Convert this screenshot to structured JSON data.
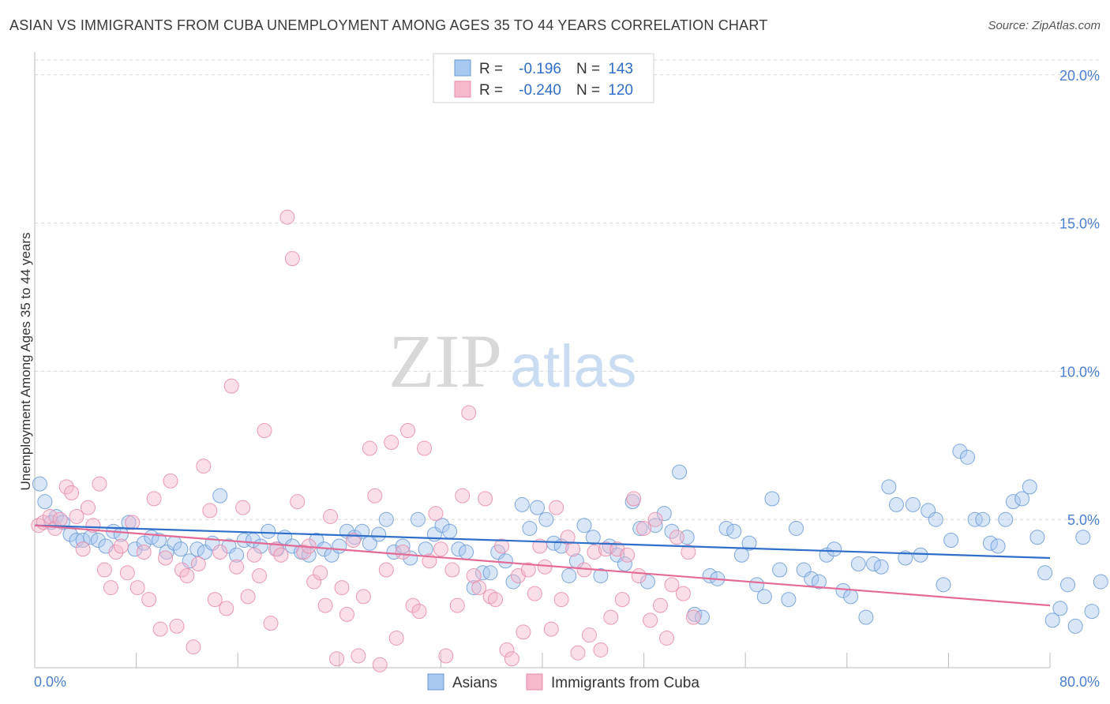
{
  "title": "ASIAN VS IMMIGRANTS FROM CUBA UNEMPLOYMENT AMONG AGES 35 TO 44 YEARS CORRELATION CHART",
  "source": "Source: ZipAtlas.com",
  "watermark": {
    "zip": "ZIP",
    "atlas": "atlas"
  },
  "colors": {
    "asian_fill": "#a9c8ef",
    "asian_stroke": "#6a9ad8",
    "asian_line": "#2f6fc9",
    "cuba_fill": "#f5b8cb",
    "cuba_stroke": "#e88aa8",
    "cuba_line": "#e36b96",
    "tick_text": "#4a7fd0",
    "grid": "#d6d6d6"
  },
  "legend": {
    "r_label": "R =",
    "n_label": "N =",
    "asian_r": "-0.196",
    "asian_n": "143",
    "cuba_r": "-0.240",
    "cuba_n": "120"
  },
  "bottom_legend": {
    "asian": "Asians",
    "cuba": "Immigrants from Cuba"
  },
  "chart_data": {
    "type": "scatter",
    "title": "ASIAN VS IMMIGRANTS FROM CUBA UNEMPLOYMENT AMONG AGES 35 TO 44 YEARS CORRELATION CHART",
    "xlabel": "",
    "ylabel": "Unemployment Among Ages 35 to 44 years",
    "xlim": [
      0,
      80
    ],
    "ylim": [
      0,
      20.5
    ],
    "x_tick_labels": [
      "0.0%",
      "80.0%"
    ],
    "y_ticks": [
      5,
      10,
      15,
      20
    ],
    "y_tick_labels": [
      "5.0%",
      "10.0%",
      "15.0%",
      "20.0%"
    ],
    "grid": true,
    "legend_position": "top-center",
    "series": [
      {
        "name": "Asians",
        "r": -0.196,
        "n": 143,
        "trend": {
          "x": [
            0,
            80
          ],
          "y": [
            4.8,
            3.7
          ]
        },
        "points": [
          [
            0.4,
            6.2
          ],
          [
            0.8,
            5.6
          ],
          [
            1.3,
            4.9
          ],
          [
            1.7,
            5.1
          ],
          [
            2.2,
            4.9
          ],
          [
            2.8,
            4.5
          ],
          [
            3.3,
            4.3
          ],
          [
            3.8,
            4.3
          ],
          [
            4.4,
            4.4
          ],
          [
            5.0,
            4.3
          ],
          [
            5.6,
            4.1
          ],
          [
            6.2,
            4.6
          ],
          [
            6.8,
            4.5
          ],
          [
            7.4,
            4.9
          ],
          [
            7.9,
            4.0
          ],
          [
            8.6,
            4.2
          ],
          [
            9.2,
            4.4
          ],
          [
            9.8,
            4.3
          ],
          [
            10.4,
            3.9
          ],
          [
            11.0,
            4.2
          ],
          [
            11.5,
            4.0
          ],
          [
            12.2,
            3.6
          ],
          [
            12.8,
            4.0
          ],
          [
            13.4,
            3.9
          ],
          [
            14.0,
            4.2
          ],
          [
            14.6,
            5.8
          ],
          [
            15.3,
            4.1
          ],
          [
            15.9,
            3.8
          ],
          [
            16.5,
            4.3
          ],
          [
            17.2,
            4.3
          ],
          [
            17.8,
            4.1
          ],
          [
            18.4,
            4.6
          ],
          [
            19.1,
            4.0
          ],
          [
            19.7,
            4.4
          ],
          [
            20.3,
            4.1
          ],
          [
            21.0,
            3.9
          ],
          [
            21.6,
            3.8
          ],
          [
            22.2,
            4.3
          ],
          [
            22.8,
            4.0
          ],
          [
            23.4,
            3.8
          ],
          [
            24.0,
            4.1
          ],
          [
            24.6,
            4.6
          ],
          [
            25.2,
            4.4
          ],
          [
            25.8,
            4.6
          ],
          [
            26.4,
            4.2
          ],
          [
            27.1,
            4.5
          ],
          [
            27.7,
            5.0
          ],
          [
            28.3,
            3.9
          ],
          [
            29.0,
            4.1
          ],
          [
            29.6,
            3.7
          ],
          [
            30.2,
            5.0
          ],
          [
            30.8,
            4.0
          ],
          [
            31.5,
            4.5
          ],
          [
            32.1,
            4.8
          ],
          [
            32.7,
            4.6
          ],
          [
            33.4,
            4.0
          ],
          [
            34.0,
            3.9
          ],
          [
            34.6,
            2.7
          ],
          [
            35.3,
            3.2
          ],
          [
            35.9,
            3.2
          ],
          [
            36.5,
            3.9
          ],
          [
            37.1,
            3.6
          ],
          [
            37.7,
            2.9
          ],
          [
            38.4,
            5.5
          ],
          [
            39.0,
            4.7
          ],
          [
            39.6,
            5.4
          ],
          [
            40.3,
            5.0
          ],
          [
            40.9,
            4.2
          ],
          [
            41.5,
            4.1
          ],
          [
            42.1,
            3.1
          ],
          [
            42.7,
            3.6
          ],
          [
            43.3,
            4.8
          ],
          [
            44.0,
            4.4
          ],
          [
            44.6,
            3.1
          ],
          [
            45.3,
            4.1
          ],
          [
            45.9,
            3.8
          ],
          [
            46.5,
            3.5
          ],
          [
            47.1,
            5.6
          ],
          [
            47.7,
            4.7
          ],
          [
            48.3,
            2.9
          ],
          [
            48.9,
            4.8
          ],
          [
            49.6,
            5.2
          ],
          [
            50.2,
            4.6
          ],
          [
            50.8,
            6.6
          ],
          [
            51.4,
            4.4
          ],
          [
            52.0,
            1.8
          ],
          [
            52.6,
            1.7
          ],
          [
            53.2,
            3.1
          ],
          [
            53.8,
            3.0
          ],
          [
            54.5,
            4.7
          ],
          [
            55.1,
            4.6
          ],
          [
            55.7,
            3.8
          ],
          [
            56.3,
            4.2
          ],
          [
            56.9,
            2.8
          ],
          [
            57.5,
            2.4
          ],
          [
            58.1,
            5.7
          ],
          [
            58.7,
            3.3
          ],
          [
            59.4,
            2.3
          ],
          [
            60.0,
            4.7
          ],
          [
            60.6,
            3.3
          ],
          [
            61.2,
            3.0
          ],
          [
            61.8,
            2.9
          ],
          [
            62.4,
            3.8
          ],
          [
            63.0,
            4.0
          ],
          [
            63.7,
            2.6
          ],
          [
            64.3,
            2.4
          ],
          [
            64.9,
            3.5
          ],
          [
            65.5,
            1.7
          ],
          [
            66.1,
            3.5
          ],
          [
            66.7,
            3.4
          ],
          [
            67.3,
            6.1
          ],
          [
            67.9,
            5.5
          ],
          [
            68.6,
            3.7
          ],
          [
            69.2,
            5.5
          ],
          [
            69.8,
            3.8
          ],
          [
            70.4,
            5.3
          ],
          [
            71.0,
            5.0
          ],
          [
            71.6,
            2.8
          ],
          [
            72.2,
            4.3
          ],
          [
            72.9,
            7.3
          ],
          [
            73.5,
            7.1
          ],
          [
            74.1,
            5.0
          ],
          [
            74.7,
            5.0
          ],
          [
            75.3,
            4.2
          ],
          [
            75.9,
            4.1
          ],
          [
            76.5,
            5.0
          ],
          [
            77.1,
            5.6
          ],
          [
            77.8,
            5.7
          ],
          [
            78.4,
            6.1
          ],
          [
            79.0,
            4.4
          ],
          [
            79.6,
            3.2
          ],
          [
            80.2,
            1.6
          ],
          [
            80.8,
            2.0
          ],
          [
            81.4,
            2.8
          ],
          [
            82.0,
            1.4
          ],
          [
            82.6,
            4.4
          ],
          [
            83.3,
            1.9
          ],
          [
            84.0,
            2.9
          ]
        ]
      },
      {
        "name": "Immigrants from Cuba",
        "r": -0.24,
        "n": 120,
        "trend": {
          "x": [
            0,
            80
          ],
          "y": [
            4.8,
            2.1
          ]
        },
        "points": [
          [
            0.3,
            4.8
          ],
          [
            0.7,
            4.9
          ],
          [
            1.2,
            5.1
          ],
          [
            1.6,
            4.7
          ],
          [
            2.0,
            5.0
          ],
          [
            2.5,
            6.1
          ],
          [
            2.9,
            5.9
          ],
          [
            3.3,
            5.1
          ],
          [
            3.8,
            4.0
          ],
          [
            4.2,
            5.4
          ],
          [
            4.6,
            4.8
          ],
          [
            5.1,
            6.2
          ],
          [
            5.5,
            3.3
          ],
          [
            6.0,
            2.7
          ],
          [
            6.4,
            3.9
          ],
          [
            6.8,
            4.1
          ],
          [
            7.3,
            3.2
          ],
          [
            7.7,
            4.9
          ],
          [
            8.1,
            2.7
          ],
          [
            8.6,
            3.9
          ],
          [
            9.0,
            2.3
          ],
          [
            9.4,
            5.7
          ],
          [
            9.9,
            1.3
          ],
          [
            10.3,
            3.7
          ],
          [
            10.7,
            6.3
          ],
          [
            11.2,
            1.4
          ],
          [
            11.6,
            3.3
          ],
          [
            12.0,
            3.1
          ],
          [
            12.5,
            0.7
          ],
          [
            12.9,
            3.5
          ],
          [
            13.3,
            6.8
          ],
          [
            13.8,
            5.3
          ],
          [
            14.2,
            2.3
          ],
          [
            14.6,
            3.9
          ],
          [
            15.1,
            2.0
          ],
          [
            15.5,
            9.5
          ],
          [
            15.9,
            3.4
          ],
          [
            16.4,
            5.4
          ],
          [
            16.8,
            2.4
          ],
          [
            17.3,
            3.8
          ],
          [
            17.7,
            3.1
          ],
          [
            18.1,
            8.0
          ],
          [
            18.6,
            1.5
          ],
          [
            19.0,
            4.0
          ],
          [
            19.4,
            3.8
          ],
          [
            19.9,
            15.2
          ],
          [
            20.3,
            13.8
          ],
          [
            20.7,
            5.6
          ],
          [
            21.2,
            3.9
          ],
          [
            21.6,
            4.1
          ],
          [
            22.0,
            2.9
          ],
          [
            22.5,
            3.2
          ],
          [
            22.9,
            2.1
          ],
          [
            23.3,
            5.1
          ],
          [
            23.8,
            0.3
          ],
          [
            24.2,
            2.7
          ],
          [
            24.6,
            1.8
          ],
          [
            25.1,
            4.3
          ],
          [
            25.5,
            0.4
          ],
          [
            25.9,
            2.4
          ],
          [
            26.4,
            7.4
          ],
          [
            26.8,
            5.8
          ],
          [
            27.2,
            0.1
          ],
          [
            27.7,
            3.3
          ],
          [
            28.1,
            7.6
          ],
          [
            28.5,
            1.0
          ],
          [
            29.0,
            3.9
          ],
          [
            29.4,
            8.0
          ],
          [
            29.8,
            2.1
          ],
          [
            30.3,
            1.9
          ],
          [
            30.7,
            7.4
          ],
          [
            31.1,
            3.6
          ],
          [
            31.6,
            5.2
          ],
          [
            32.0,
            4.0
          ],
          [
            32.4,
            0.4
          ],
          [
            32.9,
            3.3
          ],
          [
            33.3,
            2.1
          ],
          [
            33.7,
            5.8
          ],
          [
            34.2,
            8.6
          ],
          [
            34.6,
            3.1
          ],
          [
            35.0,
            2.7
          ],
          [
            35.5,
            5.7
          ],
          [
            35.9,
            2.4
          ],
          [
            36.3,
            2.3
          ],
          [
            36.8,
            4.1
          ],
          [
            37.2,
            0.6
          ],
          [
            37.6,
            0.3
          ],
          [
            38.1,
            3.1
          ],
          [
            38.5,
            1.2
          ],
          [
            38.9,
            3.3
          ],
          [
            39.4,
            2.5
          ],
          [
            39.8,
            4.1
          ],
          [
            40.2,
            3.4
          ],
          [
            40.7,
            1.3
          ],
          [
            41.1,
            5.4
          ],
          [
            41.5,
            2.3
          ],
          [
            42.0,
            4.4
          ],
          [
            42.4,
            4.0
          ],
          [
            42.8,
            0.5
          ],
          [
            43.3,
            3.3
          ],
          [
            43.7,
            1.1
          ],
          [
            44.1,
            3.9
          ],
          [
            44.6,
            0.6
          ],
          [
            45.0,
            4.0
          ],
          [
            45.4,
            1.7
          ],
          [
            45.9,
            4.0
          ],
          [
            46.3,
            2.3
          ],
          [
            46.7,
            3.8
          ],
          [
            47.2,
            5.7
          ],
          [
            47.6,
            3.1
          ],
          [
            48.0,
            4.7
          ],
          [
            48.5,
            1.6
          ],
          [
            48.9,
            5.0
          ],
          [
            49.3,
            2.1
          ],
          [
            49.8,
            1.0
          ],
          [
            50.2,
            2.8
          ],
          [
            50.6,
            4.4
          ],
          [
            51.1,
            2.5
          ],
          [
            51.5,
            3.9
          ],
          [
            51.9,
            1.7
          ]
        ]
      }
    ]
  }
}
